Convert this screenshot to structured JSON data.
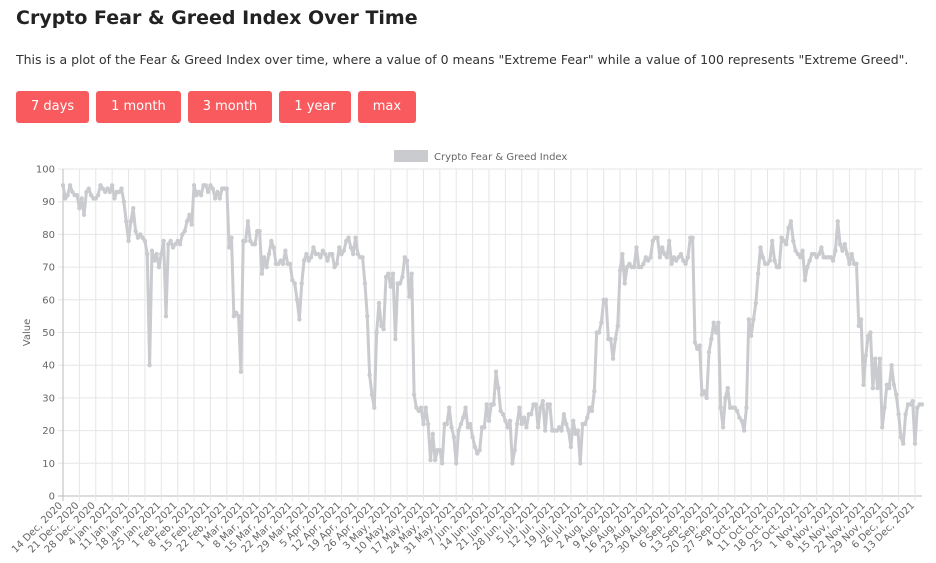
{
  "header": {
    "title": "Crypto Fear & Greed Index Over Time",
    "description": "This is a plot of the Fear & Greed Index over time, where a value of 0 means \"Extreme Fear\" while a value of 100 represents \"Extreme Greed\".",
    "buttons": [
      "7 days",
      "1 month",
      "3 month",
      "1 year",
      "max"
    ]
  },
  "chart_data": {
    "type": "line",
    "y_label": "Value",
    "ylim": [
      0,
      100
    ],
    "yticks": [
      0,
      10,
      20,
      30,
      40,
      50,
      60,
      70,
      80,
      90,
      100
    ],
    "grid": true,
    "legend": "top",
    "categories": [
      "14 Dec, 2020",
      null,
      null,
      null,
      null,
      null,
      null,
      "21 Dec, 2020",
      null,
      null,
      null,
      null,
      null,
      null,
      "28 Dec, 2020",
      null,
      null,
      null,
      null,
      null,
      null,
      "4 Jan, 2021",
      null,
      null,
      null,
      null,
      null,
      null,
      "11 Jan, 2021",
      null,
      null,
      null,
      null,
      null,
      null,
      "18 Jan, 2021",
      null,
      null,
      null,
      null,
      null,
      null,
      "25 Jan, 2021",
      null,
      null,
      null,
      null,
      null,
      null,
      "1 Feb, 2021",
      null,
      null,
      null,
      null,
      null,
      null,
      "8 Feb, 2021",
      null,
      null,
      null,
      null,
      null,
      null,
      "15 Feb, 2021",
      null,
      null,
      null,
      null,
      null,
      null,
      "22 Feb, 2021",
      null,
      null,
      null,
      null,
      null,
      null,
      "1 Mar, 2021",
      null,
      null,
      null,
      null,
      null,
      null,
      "8 Mar, 2021",
      null,
      null,
      null,
      null,
      null,
      null,
      "15 Mar, 2021",
      null,
      null,
      null,
      null,
      null,
      null,
      "22 Mar, 2021",
      null,
      null,
      null,
      null,
      null,
      null,
      "29 Mar, 2021",
      null,
      null,
      null,
      null,
      null,
      null,
      "5 Apr, 2021",
      null,
      null,
      null,
      null,
      null,
      null,
      "12 Apr, 2021",
      null,
      null,
      null,
      null,
      null,
      null,
      "19 Apr, 2021",
      null,
      null,
      null,
      null,
      null,
      null,
      "26 Apr, 2021",
      null,
      null,
      null,
      null,
      null,
      null,
      "3 May, 2021",
      null,
      null,
      null,
      null,
      null,
      null,
      "10 May, 2021",
      null,
      null,
      null,
      null,
      null,
      null,
      "17 May, 2021",
      null,
      null,
      null,
      null,
      null,
      null,
      "24 May, 2021",
      null,
      null,
      null,
      null,
      null,
      null,
      "31 May, 2021",
      null,
      null,
      null,
      null,
      null,
      null,
      "7 Jun, 2021",
      null,
      null,
      null,
      null,
      null,
      null,
      "14 Jun, 2021",
      null,
      null,
      null,
      null,
      null,
      null,
      "21 Jun, 2021",
      null,
      null,
      null,
      null,
      null,
      null,
      "28 Jun, 2021",
      null,
      null,
      null,
      null,
      null,
      null,
      "5 Jul, 2021",
      null,
      null,
      null,
      null,
      null,
      null,
      "12 Jul, 2021",
      null,
      null,
      null,
      null,
      null,
      null,
      "19 Jul, 2021",
      null,
      null,
      null,
      null,
      null,
      null,
      "26 Jul, 2021",
      null,
      null,
      null,
      null,
      null,
      null,
      "2 Aug, 2021",
      null,
      null,
      null,
      null,
      null,
      null,
      "9 Aug, 2021",
      null,
      null,
      null,
      null,
      null,
      null,
      "16 Aug, 2021",
      null,
      null,
      null,
      null,
      null,
      null,
      "23 Aug, 2021",
      null,
      null,
      null,
      null,
      null,
      null,
      "30 Aug, 2021",
      null,
      null,
      null,
      null,
      null,
      null,
      "6 Sep, 2021",
      null,
      null,
      null,
      null,
      null,
      null,
      "13 Sep, 2021",
      null,
      null,
      null,
      null,
      null,
      null,
      "20 Sep, 2021",
      null,
      null,
      null,
      null,
      null,
      null,
      "27 Sep, 2021",
      null,
      null,
      null,
      null,
      null,
      null,
      "4 Oct, 2021",
      null,
      null,
      null,
      null,
      null,
      null,
      "11 Oct, 2021",
      null,
      null,
      null,
      null,
      null,
      null,
      "18 Oct, 2021",
      null,
      null,
      null,
      null,
      null,
      null,
      "25 Oct, 2021",
      null,
      null,
      null,
      null,
      null,
      null,
      "1 Nov, 2021",
      null,
      null,
      null,
      null,
      null,
      null,
      "8 Nov, 2021",
      null,
      null,
      null,
      null,
      null,
      null,
      "15 Nov, 2021",
      null,
      null,
      null,
      null,
      null,
      null,
      "22 Nov, 2021",
      null,
      null,
      null,
      null,
      null,
      null,
      "29 Nov, 2021",
      null,
      null,
      null,
      null,
      null,
      null,
      "6 Dec, 2021",
      null,
      null,
      null,
      null,
      null,
      null,
      "13 Dec, 2021",
      null,
      null,
      null
    ],
    "series": [
      {
        "name": "Crypto Fear & Greed Index",
        "color": "#c9cbcf",
        "values": [
          95,
          91,
          92,
          95,
          93,
          92,
          92,
          88,
          91,
          86,
          93,
          94,
          92,
          91,
          91,
          92,
          95,
          94,
          93,
          94,
          93,
          95,
          91,
          93,
          93,
          94,
          90,
          84,
          78,
          84,
          88,
          81,
          79,
          80,
          79,
          78,
          74,
          40,
          75,
          72,
          74,
          70,
          74,
          78,
          55,
          77,
          78,
          76,
          77,
          78,
          77,
          80,
          81,
          84,
          86,
          83,
          95,
          92,
          93,
          92,
          95,
          95,
          93,
          95,
          94,
          91,
          93,
          91,
          94,
          94,
          94,
          76,
          79,
          55,
          56,
          55,
          38,
          78,
          78,
          84,
          78,
          77,
          77,
          81,
          81,
          68,
          73,
          70,
          74,
          78,
          76,
          71,
          71,
          72,
          71,
          75,
          71,
          71,
          66,
          65,
          60,
          54,
          65,
          72,
          74,
          72,
          73,
          76,
          74,
          74,
          73,
          75,
          74,
          72,
          74,
          74,
          70,
          71,
          76,
          74,
          75,
          78,
          79,
          76,
          74,
          79,
          74,
          73,
          73,
          65,
          55,
          37,
          31,
          27,
          50,
          59,
          52,
          51,
          67,
          68,
          64,
          68,
          48,
          65,
          65,
          67,
          73,
          72,
          61,
          68,
          31,
          27,
          26,
          27,
          22,
          27,
          22,
          11,
          19,
          11,
          14,
          14,
          10,
          22,
          22,
          27,
          21,
          18,
          10,
          20,
          22,
          24,
          27,
          21,
          22,
          18,
          15,
          13,
          14,
          21,
          21,
          28,
          23,
          28,
          28,
          38,
          33,
          26,
          25,
          23,
          21,
          23,
          10,
          14,
          22,
          27,
          22,
          24,
          21,
          25,
          25,
          28,
          28,
          21,
          27,
          29,
          20,
          28,
          28,
          20,
          20,
          20,
          21,
          20,
          25,
          22,
          20,
          15,
          23,
          19,
          20,
          10,
          22,
          22,
          24,
          27,
          26,
          32,
          50,
          50,
          53,
          60,
          60,
          48,
          48,
          42,
          48,
          52,
          69,
          74,
          65,
          70,
          71,
          70,
          70,
          76,
          70,
          70,
          71,
          73,
          72,
          73,
          78,
          79,
          79,
          73,
          76,
          74,
          73,
          78,
          71,
          73,
          72,
          73,
          74,
          72,
          71,
          73,
          79,
          79,
          47,
          45,
          46,
          31,
          32,
          30,
          44,
          48,
          53,
          50,
          53,
          27,
          21,
          30,
          33,
          27,
          27,
          27,
          26,
          24,
          23,
          20,
          27,
          54,
          49,
          54,
          59,
          68,
          76,
          73,
          71,
          71,
          72,
          78,
          72,
          70,
          70,
          79,
          78,
          77,
          82,
          84,
          78,
          75,
          74,
          73,
          75,
          66,
          70,
          72,
          74,
          74,
          73,
          74,
          76,
          73,
          73,
          73,
          73,
          72,
          75,
          84,
          77,
          75,
          77,
          74,
          71,
          74,
          71,
          71,
          52,
          54,
          34,
          43,
          49,
          50,
          33,
          42,
          33,
          42,
          21,
          27,
          34,
          33,
          40,
          34,
          31,
          25,
          18,
          16,
          25,
          28,
          28,
          29,
          16,
          27,
          28,
          28
        ]
      }
    ]
  }
}
